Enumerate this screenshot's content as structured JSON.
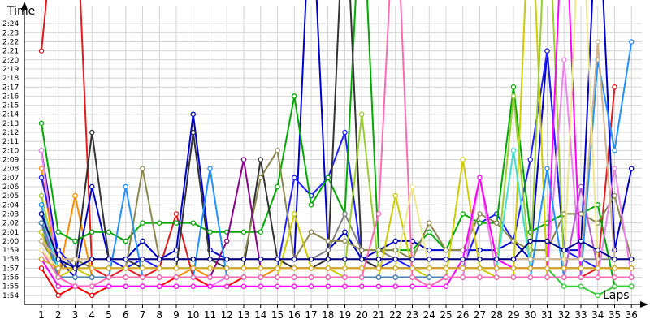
{
  "chart_data": {
    "type": "line",
    "ylabel": "Time",
    "xlabel": "Laps",
    "x": [
      1,
      2,
      3,
      4,
      5,
      6,
      7,
      8,
      9,
      10,
      11,
      12,
      13,
      14,
      15,
      16,
      17,
      18,
      19,
      20,
      21,
      22,
      23,
      24,
      25,
      26,
      27,
      28,
      29,
      30,
      31,
      32,
      33,
      34,
      35,
      36
    ],
    "ylim": [
      "1:53",
      "2:25"
    ],
    "ytick_labels": [
      "1:54",
      "1:55",
      "1:56",
      "1:57",
      "1:58",
      "1:59",
      "2:00",
      "2:01",
      "2:02",
      "2:03",
      "2:04",
      "2:05",
      "2:06",
      "2:07",
      "2:08",
      "2:09",
      "2:10",
      "2:11",
      "2:12",
      "2:13",
      "2:14",
      "2:15",
      "2:16",
      "2:17",
      "2:18",
      "2:19",
      "2:20",
      "2:21",
      "2:22",
      "2:23",
      "2:24"
    ],
    "legend": "none",
    "grid": true,
    "series": [
      {
        "color": "#e41a1c",
        "values": [
          "2:21",
          "2:40",
          "2:40",
          "1:57",
          "1:56",
          "1:57",
          "1:56",
          "1:57",
          "2:03",
          "1:56",
          "1:56",
          "1:56",
          "1:56",
          "1:56",
          "1:56",
          "1:56",
          "1:56",
          "1:56",
          "1:56",
          "1:56",
          "1:56",
          "1:56",
          "1:56",
          "1:56",
          "1:56",
          "1:56",
          "1:56",
          "1:56",
          "1:56",
          "1:56",
          "1:56",
          "1:56",
          "1:56",
          "1:57",
          "2:17",
          null
        ]
      },
      {
        "color": "#ff0000",
        "values": [
          "1:57",
          "1:54",
          "1:55",
          "1:54",
          "1:55",
          "1:55",
          "1:55",
          "1:55",
          "1:56",
          "1:56",
          "1:55",
          "1:55",
          "1:56",
          "1:56",
          "1:56",
          "1:56",
          "1:56",
          "1:56",
          "1:56",
          "1:56",
          "1:56",
          "1:56",
          "1:56",
          "1:56",
          "1:56",
          "1:56",
          "1:56",
          "1:56",
          "1:56",
          "1:56",
          "1:56",
          "1:56",
          "1:56",
          "1:56",
          "1:56",
          "1:56"
        ]
      },
      {
        "color": "#ff8c00",
        "values": [
          "2:08",
          "1:56",
          "2:05",
          "1:56",
          "1:56",
          "1:56",
          "1:56",
          "1:56",
          "1:56",
          "1:57",
          "1:56",
          "1:56",
          "1:56",
          "1:56",
          "1:57",
          "1:57",
          "1:57",
          "1:57",
          "1:57",
          "1:57",
          "1:57",
          "1:57",
          "1:57",
          "1:57",
          "1:57",
          "1:57",
          "1:57",
          "1:57",
          "1:57",
          "1:57",
          "1:57",
          "1:57",
          "1:57",
          "1:57",
          "1:57",
          "1:57"
        ]
      },
      {
        "color": "#0000cd",
        "values": [
          "2:10",
          "1:58",
          "1:56",
          "2:06",
          "1:58",
          "1:58",
          "2:00",
          "1:58",
          "1:59",
          "2:14",
          "1:59",
          "1:58",
          "1:58",
          "1:58",
          "1:58",
          "1:58",
          "2:40",
          "1:59",
          "2:01",
          "1:58",
          "1:59",
          "2:00",
          "2:00",
          "1:59",
          "1:59",
          "1:59",
          "1:59",
          "1:59",
          "2:00",
          "1:58",
          "2:21",
          "1:59",
          "1:59",
          "2:40",
          "1:59",
          "2:08"
        ]
      },
      {
        "color": "#1e1eff",
        "values": [
          "2:07",
          "1:59",
          "1:57",
          "1:58",
          "1:58",
          "1:57",
          "1:58",
          "1:57",
          "1:57",
          "1:57",
          "1:57",
          "1:57",
          "1:57",
          "1:57",
          "1:57",
          "2:07",
          "2:05",
          "2:07",
          "2:12",
          "1:58",
          "1:57",
          "1:58",
          "1:57",
          "1:57",
          "1:57",
          "1:57",
          "2:02",
          "2:03",
          "2:00",
          "2:09",
          "2:21",
          "1:59",
          "1:58",
          "1:57",
          "1:57",
          "1:57"
        ]
      },
      {
        "color": "#00aa00",
        "values": [
          "2:13",
          "2:01",
          "2:00",
          "2:01",
          "2:01",
          "2:00",
          "2:02",
          "2:02",
          "2:02",
          "2:02",
          "2:01",
          "2:01",
          "2:01",
          "2:01",
          "2:06",
          "2:16",
          "2:04",
          "2:07",
          "2:03",
          "2:40",
          "1:59",
          "1:59",
          "1:59",
          "2:01",
          "1:59",
          "2:03",
          "2:02",
          "2:02",
          "2:17",
          "2:01",
          "2:02",
          "2:03",
          "2:03",
          "2:04",
          "1:55",
          "1:55"
        ]
      },
      {
        "color": "#32cd32",
        "values": [
          "2:02",
          "1:58",
          "1:57",
          "1:57",
          "1:57",
          "1:57",
          "1:57",
          "1:57",
          "1:57",
          "1:57",
          "1:57",
          "1:57",
          "1:57",
          "1:57",
          "1:57",
          "1:57",
          "1:57",
          "1:57",
          "1:57",
          "1:57",
          "1:57",
          "1:57",
          "1:57",
          "1:57",
          "1:57",
          "1:57",
          "1:57",
          "1:57",
          "1:57",
          "1:57",
          "1:57",
          "1:55",
          "1:55",
          "1:54",
          "1:55",
          "1:55"
        ]
      },
      {
        "color": "#333333",
        "values": [
          "2:01",
          "1:57",
          "1:57",
          "2:12",
          "1:58",
          "1:58",
          "1:57",
          "1:57",
          "1:57",
          "2:12",
          "1:58",
          "1:57",
          "1:57",
          "2:09",
          "1:58",
          "1:57",
          "1:57",
          "1:58",
          "2:40",
          "1:58",
          "1:57",
          "1:57",
          "1:57",
          "1:57",
          "1:57",
          "1:57",
          "1:57",
          "1:57",
          "1:57",
          "1:57",
          "1:57",
          "1:57",
          "1:57",
          "1:57",
          "1:57",
          "1:57"
        ]
      },
      {
        "color": "#808080",
        "values": [
          "2:00",
          "1:58",
          "1:58",
          "1:58",
          "1:58",
          "1:58",
          "1:58",
          "1:58",
          "1:58",
          "1:58",
          "1:58",
          "1:58",
          "1:58",
          "1:58",
          "1:58",
          "1:58",
          "1:58",
          "1:59",
          "2:03",
          "1:59",
          "1:59",
          "1:58",
          "1:58",
          "1:58",
          "1:58",
          "1:58",
          "1:58",
          "1:58",
          "1:58",
          "1:58",
          "1:58",
          "1:58",
          "1:58",
          "1:58",
          "1:58",
          "1:58"
        ]
      },
      {
        "color": "#8b864e",
        "values": [
          "2:00",
          "1:57",
          "1:58",
          "1:57",
          "1:57",
          "1:57",
          "2:08",
          "1:58",
          "1:58",
          "1:58",
          "1:58",
          "1:58",
          "1:58",
          "2:07",
          "2:10",
          "1:58",
          "2:01",
          "2:00",
          "2:00",
          "1:59",
          "1:59",
          "1:59",
          "1:58",
          "2:02",
          "1:59",
          "1:59",
          "2:03",
          "2:02",
          "2:00",
          "1:59",
          "1:59",
          "2:03",
          "2:03",
          "2:02",
          "2:05",
          "1:58"
        ]
      },
      {
        "color": "#cccc00",
        "values": [
          "2:01",
          "1:56",
          "1:57",
          "1:56",
          "1:56",
          "1:56",
          "1:56",
          "1:56",
          "1:56",
          "1:56",
          "1:56",
          "1:56",
          "1:56",
          "1:56",
          "1:56",
          "2:03",
          "1:57",
          "1:57",
          "1:56",
          "1:56",
          "1:56",
          "2:05",
          "1:57",
          "1:56",
          "1:56",
          "2:09",
          "1:57",
          "1:56",
          "1:56",
          "2:40",
          "1:56",
          "1:56",
          "1:56",
          "1:56",
          "1:56",
          "1:56"
        ]
      },
      {
        "color": "#9acd32",
        "values": [
          "2:05",
          "1:57",
          "1:57",
          "1:57",
          "1:57",
          "1:57",
          "1:57",
          "1:57",
          "1:57",
          "1:57",
          "1:57",
          "1:57",
          "1:57",
          "1:57",
          "1:57",
          "1:57",
          "1:57",
          "1:57",
          "1:57",
          "2:14",
          "1:57",
          "1:57",
          "1:57",
          "1:57",
          "1:57",
          "1:57",
          "1:57",
          "1:57",
          "2:16",
          "1:57",
          "2:40",
          "1:57",
          "1:57",
          "1:57",
          "1:57",
          "1:57"
        ]
      },
      {
        "color": "#ee82ee",
        "values": [
          "2:10",
          "1:56",
          "1:55",
          "1:55",
          "1:55",
          "1:55",
          "1:55",
          "1:55",
          "1:55",
          "1:55",
          "1:55",
          "1:56",
          "1:56",
          "1:56",
          "1:56",
          "1:56",
          "1:56",
          "1:56",
          "1:56",
          "1:56",
          "1:56",
          "1:56",
          "1:56",
          "1:56",
          "1:56",
          "1:56",
          "2:07",
          "1:56",
          "1:56",
          "1:56",
          "1:56",
          "2:20",
          "1:56",
          "1:56",
          "2:08",
          "1:56"
        ]
      },
      {
        "color": "#ff00ff",
        "values": [
          "1:58",
          "1:55",
          "1:55",
          "1:55",
          "1:55",
          "1:55",
          "1:55",
          "1:55",
          "1:55",
          "1:55",
          "1:55",
          "1:55",
          "1:55",
          "1:55",
          "1:55",
          "1:55",
          "1:55",
          "1:55",
          "1:55",
          "1:55",
          "1:55",
          "1:55",
          "1:55",
          "1:55",
          "1:55",
          "1:58",
          "2:07",
          "1:58",
          "1:57",
          "1:57",
          "1:57",
          "2:40",
          "1:56",
          "1:56",
          "1:56",
          "1:56"
        ]
      },
      {
        "color": "#8b008b",
        "values": [
          "2:02",
          "1:56",
          "1:56",
          "1:56",
          "1:56",
          "1:56",
          "1:56",
          "1:56",
          "1:56",
          "1:56",
          "1:56",
          "2:00",
          "2:09",
          "1:57",
          "1:57",
          "1:57",
          "1:57",
          "1:57",
          "1:57",
          "1:57",
          "1:57",
          "1:57",
          "1:57",
          "1:57",
          "1:57",
          "1:57",
          "1:57",
          "1:57",
          "1:57",
          "1:57",
          "1:57",
          "1:57",
          "1:57",
          "1:57",
          "1:57",
          "1:57"
        ]
      },
      {
        "color": "#ba55d3",
        "values": [
          "2:03",
          "1:56",
          "1:56",
          "1:56",
          "1:56",
          "1:56",
          "1:56",
          "1:56",
          "1:56",
          "1:56",
          "1:56",
          "1:56",
          "1:56",
          "1:56",
          "1:56",
          "1:56",
          "1:56",
          "1:56",
          "1:56",
          "1:56",
          "1:56",
          "1:56",
          "1:56",
          "1:56",
          "1:56",
          "1:56",
          "1:56",
          "1:56",
          "1:56",
          "1:56",
          "1:56",
          "1:56",
          "2:06",
          "1:57",
          "1:57",
          "1:57"
        ]
      },
      {
        "color": "#1e90ff",
        "values": [
          "2:04",
          "1:56",
          "1:56",
          "1:56",
          "1:56",
          "2:06",
          "1:56",
          "1:56",
          "1:56",
          "1:56",
          "2:08",
          "1:56",
          "1:56",
          "1:56",
          "1:56",
          "1:56",
          "1:56",
          "1:56",
          "1:56",
          "1:56",
          "1:56",
          "1:56",
          "1:56",
          "1:56",
          "1:56",
          "1:56",
          "1:56",
          "1:56",
          "1:56",
          "1:56",
          "2:08",
          "1:56",
          "1:56",
          "2:20",
          "2:10",
          "2:22"
        ]
      },
      {
        "color": "#40e0d0",
        "values": [
          "2:03",
          "1:57",
          "1:57",
          "1:57",
          "1:57",
          "1:57",
          "1:57",
          "1:57",
          "1:57",
          "1:57",
          "1:57",
          "1:57",
          "1:57",
          "1:57",
          "1:57",
          "1:57",
          "1:57",
          "1:57",
          "1:57",
          "1:57",
          "1:57",
          "1:57",
          "1:57",
          "1:57",
          "1:57",
          "1:57",
          "1:57",
          "1:57",
          "2:10",
          "1:57",
          "1:57",
          "1:57",
          "1:57",
          "1:57",
          "1:57",
          "1:57"
        ]
      },
      {
        "color": "#4682b4",
        "values": [
          "2:02",
          "1:56",
          "1:56",
          "1:56",
          "1:56",
          "1:56",
          "1:56",
          "1:56",
          "1:56",
          "1:56",
          "1:56",
          "1:56",
          "1:56",
          "1:56",
          "1:56",
          "1:56",
          "1:56",
          "1:56",
          "1:56",
          "1:56",
          "1:56",
          "1:56",
          "1:56",
          "1:56",
          "1:56",
          "1:56",
          "1:56",
          "1:56",
          "1:56",
          "1:56",
          "1:56",
          "1:56",
          "1:56",
          "1:56",
          "1:56",
          "1:56"
        ]
      },
      {
        "color": "#ff69b4",
        "values": [
          "1:59",
          "1:56",
          "1:55",
          "1:55",
          "1:56",
          "1:56",
          "1:56",
          "1:56",
          "1:56",
          "1:56",
          "1:56",
          "1:56",
          "1:56",
          "1:56",
          "1:56",
          "1:56",
          "1:56",
          "1:56",
          "1:56",
          "1:56",
          "2:03",
          "2:40",
          "1:56",
          "1:55",
          "1:56",
          "1:56",
          "1:56",
          "1:56",
          "1:56",
          "1:56",
          "1:56",
          "1:56",
          "1:56",
          "1:56",
          "1:56",
          "1:56"
        ]
      },
      {
        "color": "#d2b48c",
        "values": [
          "2:00",
          "1:58",
          "1:58",
          "1:58",
          "1:58",
          "1:58",
          "1:58",
          "1:58",
          "1:58",
          "1:58",
          "1:58",
          "1:58",
          "1:58",
          "1:58",
          "1:58",
          "1:58",
          "1:58",
          "1:58",
          "1:58",
          "1:58",
          "1:58",
          "1:58",
          "1:58",
          "1:58",
          "1:58",
          "1:58",
          "1:58",
          "1:58",
          "1:58",
          "1:58",
          "1:58",
          "1:58",
          "1:58",
          "2:22",
          "1:58",
          "1:58"
        ]
      },
      {
        "color": "#f0e68c",
        "values": [
          "1:59",
          "1:57",
          "1:57",
          "1:57",
          "1:57",
          "1:57",
          "1:57",
          "1:57",
          "1:57",
          "1:57",
          "1:57",
          "1:57",
          "1:57",
          "1:57",
          "1:57",
          "1:57",
          "1:57",
          "1:57",
          "1:57",
          "1:57",
          "1:57",
          "1:57",
          "2:06",
          "1:57",
          "1:57",
          "1:57",
          "1:57",
          "1:57",
          "1:57",
          "1:57",
          "1:57",
          "1:57",
          "2:40",
          "1:57",
          "1:57",
          "1:57"
        ]
      },
      {
        "color": "#daa520",
        "values": [
          "1:58",
          "1:57",
          "1:57",
          "1:57",
          "1:57",
          "1:57",
          "1:57",
          "1:57",
          "1:57",
          "1:57",
          "1:57",
          "1:57",
          "1:57",
          "1:57",
          "1:57",
          "1:57",
          "1:57",
          "1:57",
          "1:57",
          "1:57",
          "1:57",
          "1:57",
          "1:57",
          "1:57",
          "1:57",
          "1:57",
          "1:57",
          "1:57",
          "1:57",
          "1:57",
          "1:57",
          "1:57",
          "1:57",
          "1:57",
          "1:57",
          "1:57"
        ]
      },
      {
        "color": "#00008b",
        "values": [
          "2:03",
          "1:58",
          "1:57",
          "1:58",
          "1:58",
          "1:58",
          "1:58",
          "1:58",
          "1:58",
          "1:58",
          "1:58",
          "1:58",
          "1:58",
          "1:58",
          "1:58",
          "1:58",
          "1:58",
          "1:58",
          "1:58",
          "1:58",
          "1:58",
          "1:58",
          "1:58",
          "1:58",
          "1:58",
          "1:58",
          "1:58",
          "1:58",
          "1:58",
          "2:00",
          "2:00",
          "1:59",
          "2:00",
          "1:59",
          "1:58",
          "1:58"
        ]
      }
    ]
  }
}
